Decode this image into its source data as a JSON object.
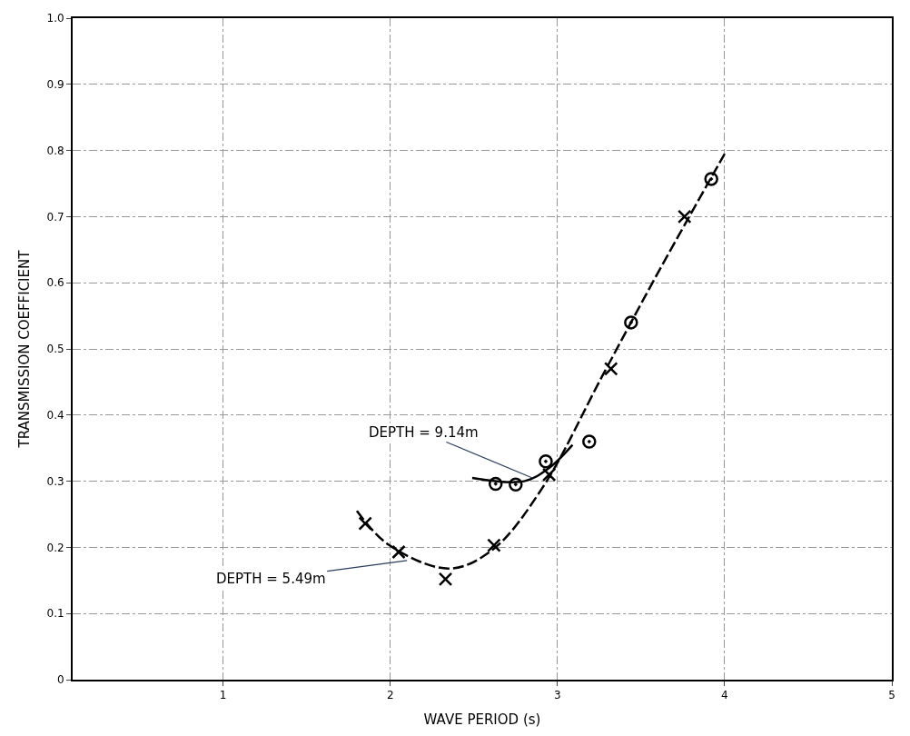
{
  "chart_data": {
    "type": "scatter",
    "xlabel": "WAVE PERIOD (s)",
    "ylabel": "TRANSMISSION COEFFICIENT",
    "xlim": [
      0.1,
      5
    ],
    "xticks": [
      1,
      2,
      3,
      4,
      5
    ],
    "ylim": [
      0,
      1
    ],
    "yticks": [
      0,
      0.1,
      0.2,
      0.3,
      0.4,
      0.5,
      0.6,
      0.7,
      0.8,
      0.9,
      {
        "value": 1,
        "label": "1.0"
      }
    ],
    "grid": true,
    "series": [
      {
        "marker": "cross",
        "color": "#000000",
        "x": [
          1.85,
          2.05,
          2.33,
          2.62,
          2.95,
          3.32,
          3.76
        ],
        "values": [
          0.236,
          0.193,
          0.152,
          0.203,
          0.31,
          0.47,
          0.7
        ]
      },
      {
        "marker": "circle",
        "color": "#000000",
        "x": [
          2.63,
          2.75,
          2.93,
          3.19,
          3.44,
          3.92
        ],
        "values": [
          0.296,
          0.295,
          0.33,
          0.36,
          0.54,
          0.757
        ]
      },
      {
        "type": "line",
        "marker": "none",
        "line_style": "dashed",
        "color": "#000000",
        "x": [
          1.8,
          1.99,
          2.35,
          2.61,
          2.91,
          3.27,
          3.59,
          4.0
        ],
        "values": [
          0.255,
          0.204,
          0.168,
          0.196,
          0.29,
          0.46,
          0.61,
          0.795
        ]
      },
      {
        "type": "line",
        "marker": "none",
        "line_style": "solid",
        "color": "#000000",
        "x": [
          2.49,
          2.8,
          2.95,
          3.09
        ],
        "values": [
          0.305,
          0.3,
          0.32,
          0.355
        ]
      }
    ],
    "annotations": [
      {
        "text": "DEPTH = 5.49m",
        "x": 2.1,
        "y": 0.18
      },
      {
        "text": "DEPTH = 9.14m",
        "x": 2.85,
        "y": 0.305
      }
    ]
  }
}
